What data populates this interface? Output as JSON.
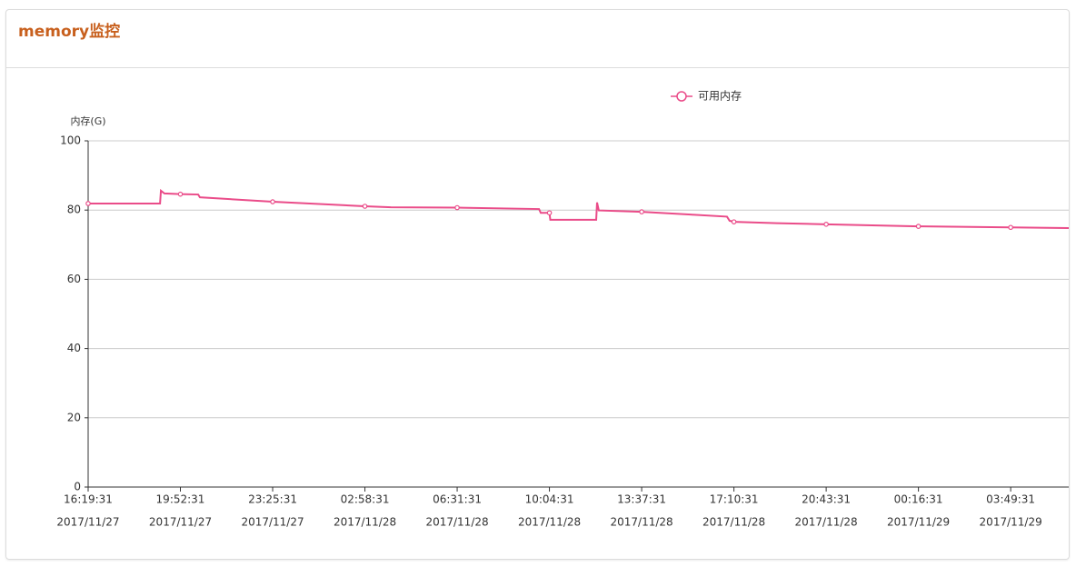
{
  "header": {
    "title": "memory监控"
  },
  "chart_data": {
    "type": "line",
    "y_label": "内存(G)",
    "x": [
      "2017/11/27 16:19:31",
      "2017/11/27 19:05:31",
      "2017/11/27 19:07:31",
      "2017/11/27 19:15:31",
      "2017/11/27 19:52:31",
      "2017/11/27 20:33:31",
      "2017/11/27 20:37:31",
      "2017/11/27 23:25:31",
      "2017/11/28 02:58:31",
      "2017/11/28 03:58:31",
      "2017/11/28 06:31:31",
      "2017/11/28 09:40:31",
      "2017/11/28 09:44:31",
      "2017/11/28 10:04:31",
      "2017/11/28 10:06:31",
      "2017/11/28 11:52:31",
      "2017/11/28 11:54:31",
      "2017/11/28 11:58:31",
      "2017/11/28 13:37:31",
      "2017/11/28 15:30:31",
      "2017/11/28 16:54:31",
      "2017/11/28 17:00:31",
      "2017/11/28 17:10:31",
      "2017/11/28 18:50:31",
      "2017/11/28 20:43:31",
      "2017/11/29 00:16:31",
      "2017/11/29 03:49:31",
      "2017/11/29 06:03:31"
    ],
    "series": [
      {
        "name": "可用内存",
        "color": "#ea4c89",
        "values": [
          81.9,
          81.9,
          85.6,
          84.8,
          84.6,
          84.5,
          83.7,
          82.4,
          81.1,
          80.8,
          80.7,
          80.3,
          79.2,
          79.2,
          77.2,
          77.2,
          82.2,
          79.9,
          79.5,
          78.7,
          78.1,
          76.9,
          76.6,
          76.2,
          75.9,
          75.3,
          75.0,
          74.8
        ]
      }
    ],
    "xlim": [
      "2017/11/27 16:19:31",
      "2017/11/29 06:03:31"
    ],
    "xticks": [
      {
        "value": "2017/11/27 16:19:31",
        "label": [
          "16:19:31",
          "2017/11/27"
        ]
      },
      {
        "value": "2017/11/27 19:52:31",
        "label": [
          "19:52:31",
          "2017/11/27"
        ]
      },
      {
        "value": "2017/11/27 23:25:31",
        "label": [
          "23:25:31",
          "2017/11/27"
        ]
      },
      {
        "value": "2017/11/28 02:58:31",
        "label": [
          "02:58:31",
          "2017/11/28"
        ]
      },
      {
        "value": "2017/11/28 06:31:31",
        "label": [
          "06:31:31",
          "2017/11/28"
        ]
      },
      {
        "value": "2017/11/28 10:04:31",
        "label": [
          "10:04:31",
          "2017/11/28"
        ]
      },
      {
        "value": "2017/11/28 13:37:31",
        "label": [
          "13:37:31",
          "2017/11/28"
        ]
      },
      {
        "value": "2017/11/28 17:10:31",
        "label": [
          "17:10:31",
          "2017/11/28"
        ]
      },
      {
        "value": "2017/11/28 20:43:31",
        "label": [
          "20:43:31",
          "2017/11/28"
        ]
      },
      {
        "value": "2017/11/29 00:16:31",
        "label": [
          "00:16:31",
          "2017/11/29"
        ]
      },
      {
        "value": "2017/11/29 03:49:31",
        "label": [
          "03:49:31",
          "2017/11/29"
        ]
      }
    ],
    "ylim": [
      0,
      100
    ],
    "yticks": [
      0,
      20,
      40,
      60,
      80,
      100
    ],
    "grid": true
  }
}
